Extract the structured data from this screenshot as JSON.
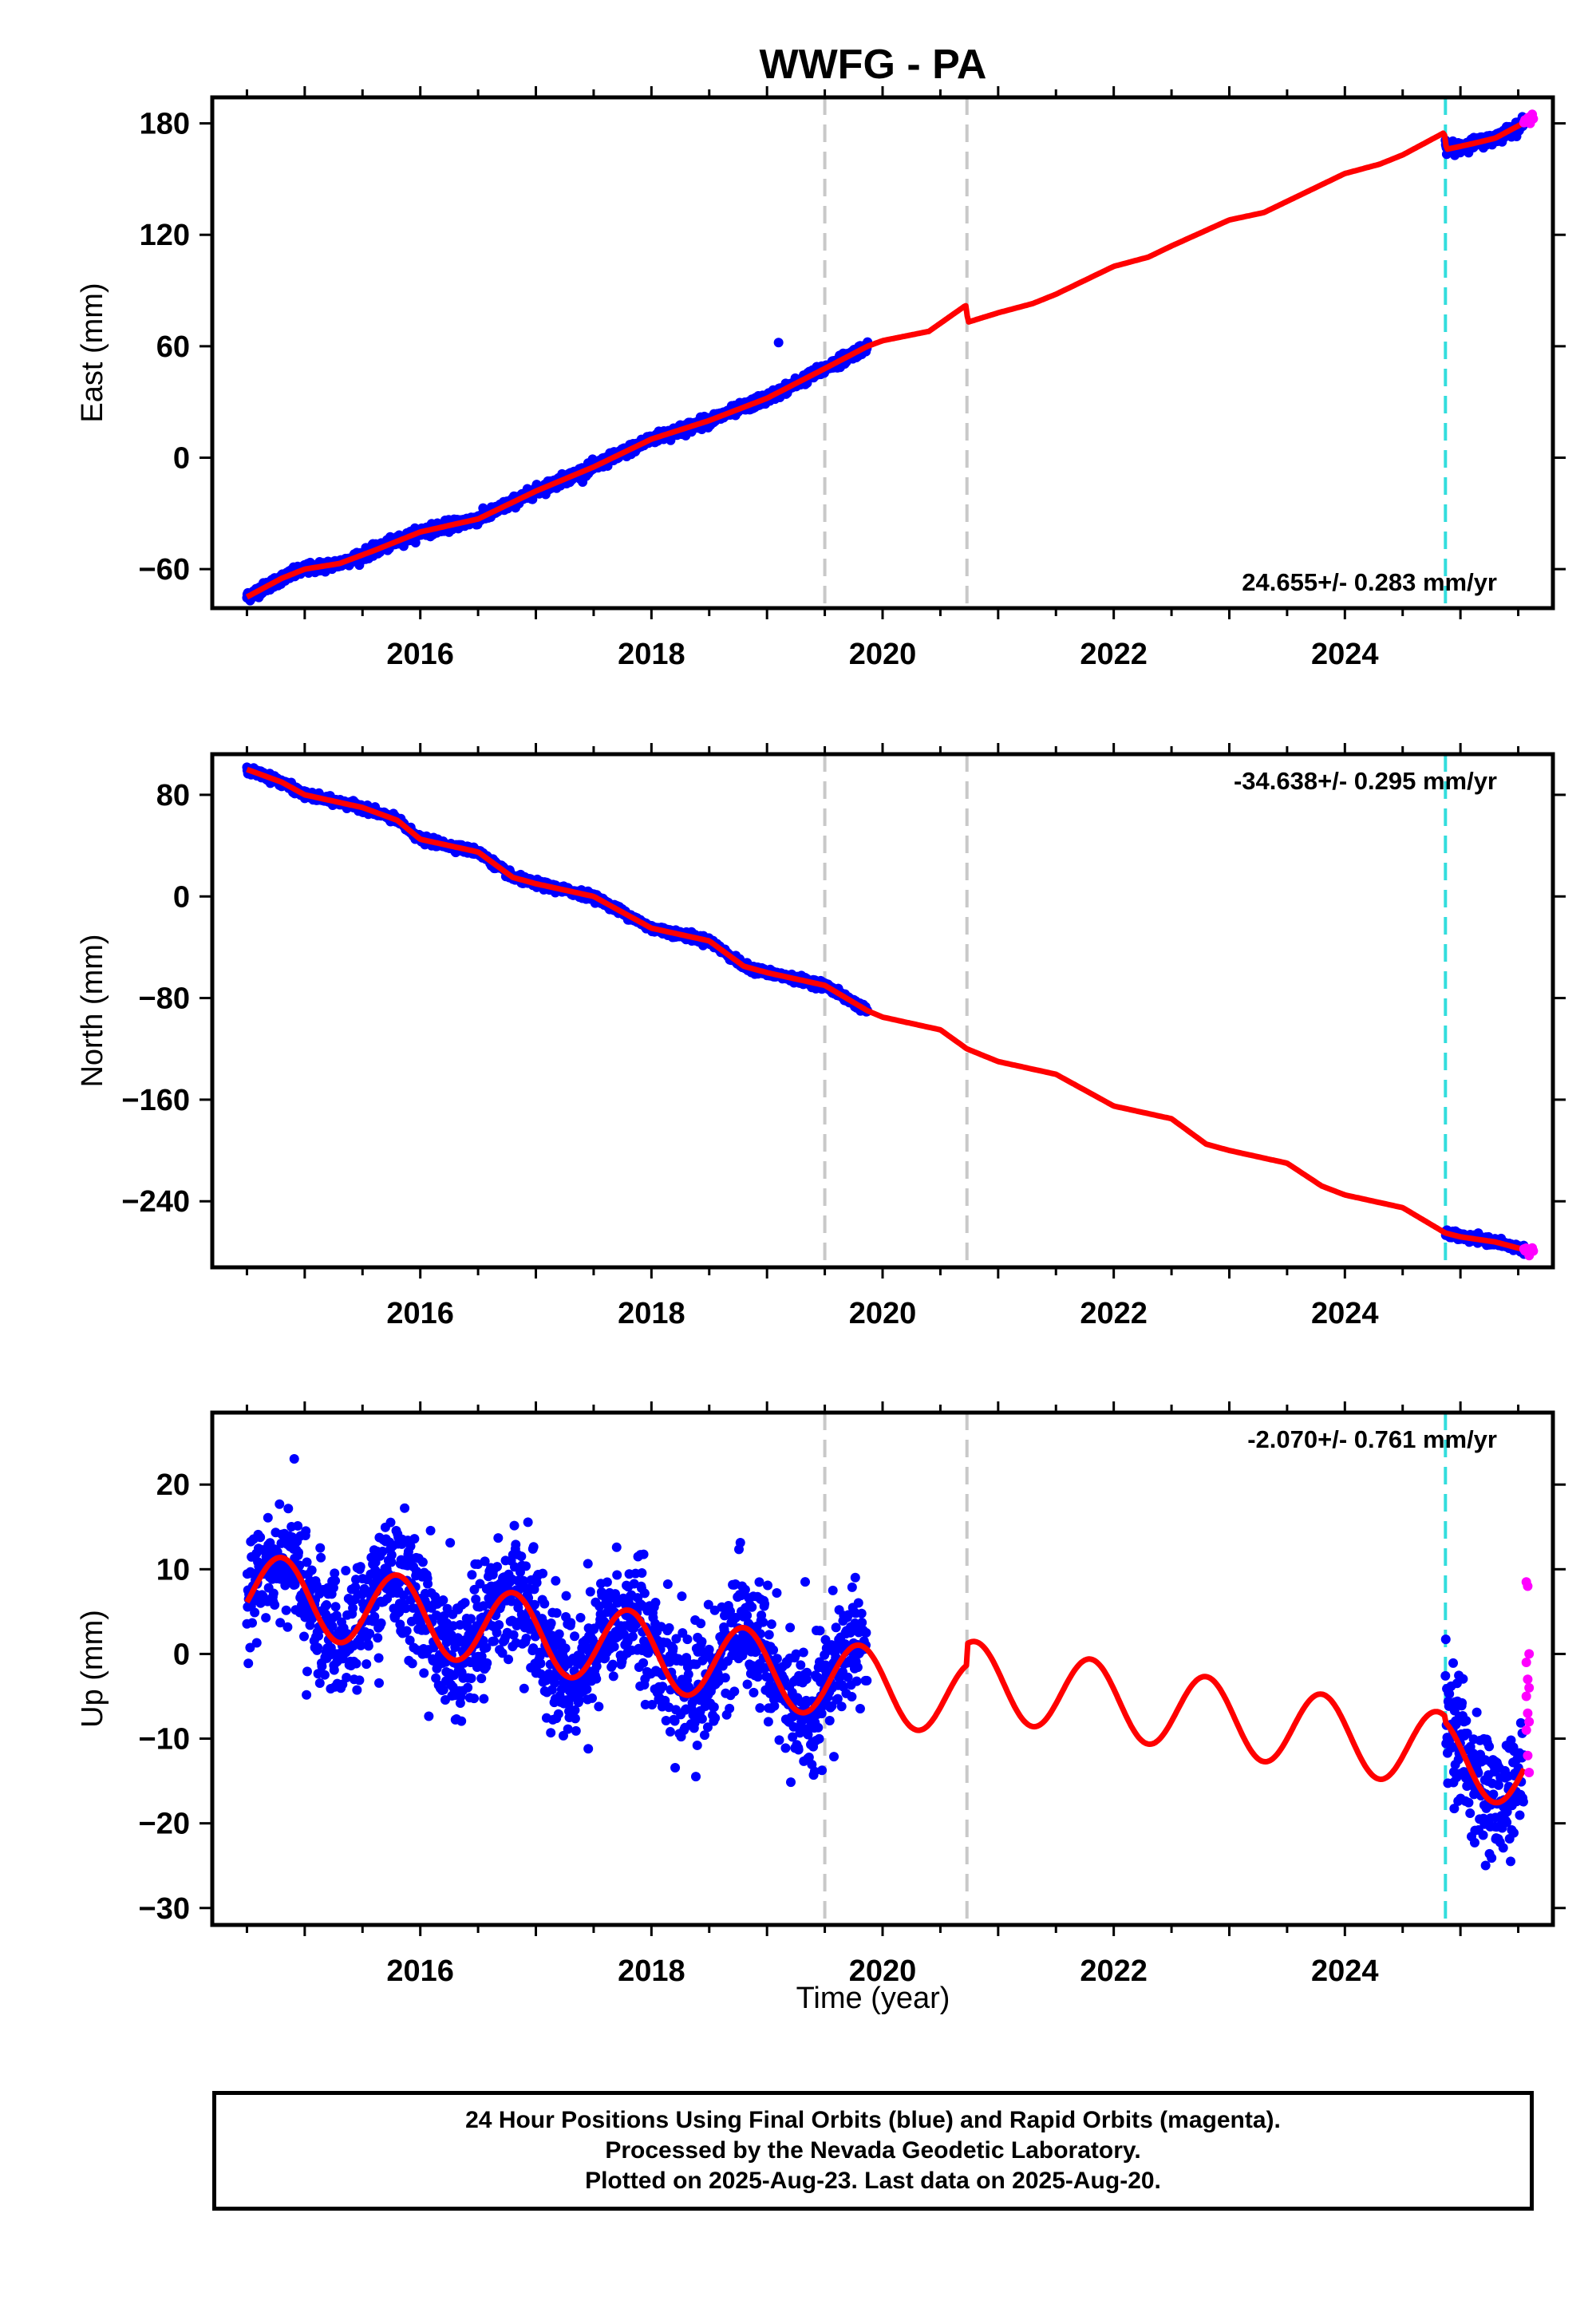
{
  "title": "WWFG - PA",
  "xlabel": "Time (year)",
  "colors": {
    "final_orbits": "#0000ff",
    "rapid_orbits": "#ff00ff",
    "model": "#ff0000",
    "equipment_change": "#c8c8c8",
    "earthquake_offset": "#33dddd"
  },
  "footer": {
    "line1": "24 Hour Positions Using Final Orbits (blue) and Rapid Orbits (magenta).",
    "line2": "Processed by the Nevada Geodetic Laboratory.",
    "line3": "Plotted on 2025-Aug-23. Last data on 2025-Aug-20."
  },
  "chart_data": [
    {
      "type": "scatter",
      "component": "East",
      "ylabel": "East (mm)",
      "rate_label": "24.655+/- 0.283 mm/yr",
      "xlim": [
        2014.2,
        2025.8
      ],
      "ylim": [
        -81,
        194
      ],
      "xticks": [
        2016,
        2018,
        2020,
        2022,
        2024
      ],
      "yticks": [
        -60,
        0,
        60,
        120,
        180
      ],
      "vertical_lines": [
        {
          "x": 2019.5,
          "style": "gray-dashed"
        },
        {
          "x": 2020.73,
          "style": "gray-dashed"
        },
        {
          "x": 2024.87,
          "style": "cyan-dashed"
        }
      ],
      "final_orbits": {
        "x_start": 2014.5,
        "x_end": 2019.87,
        "x_resume": 2024.87,
        "x_stop": 2025.55
      },
      "rapid_orbits": {
        "x_start": 2025.55,
        "x_end": 2025.63
      },
      "model_x": [
        2014.5,
        2014.8,
        2015.0,
        2015.3,
        2015.6,
        2016.0,
        2016.5,
        2017.0,
        2017.5,
        2018.0,
        2018.5,
        2019.0,
        2019.5,
        2019.87,
        2020.0,
        2020.4,
        2020.72,
        2020.74,
        2021.0,
        2021.3,
        2021.5,
        2022.0,
        2022.3,
        2022.5,
        2023.0,
        2023.3,
        2023.5,
        2024.0,
        2024.3,
        2024.5,
        2024.86,
        2024.88,
        2025.1,
        2025.3,
        2025.63
      ],
      "model_y": [
        -75,
        -65,
        -60,
        -57,
        -50,
        -40,
        -33,
        -18,
        -5,
        10,
        20,
        32,
        48,
        60,
        63,
        68,
        82,
        73,
        78,
        83,
        88,
        103,
        108,
        114,
        128,
        132,
        138,
        153,
        158,
        163,
        175,
        166,
        169,
        172,
        183
      ],
      "outlier_points": [
        {
          "x": 2019.1,
          "y": 62
        }
      ]
    },
    {
      "type": "scatter",
      "component": "North",
      "ylabel": "North (mm)",
      "rate_label": "-34.638+/- 0.295 mm/yr",
      "xlim": [
        2014.2,
        2025.8
      ],
      "ylim": [
        -292,
        112
      ],
      "xticks": [
        2016,
        2018,
        2020,
        2022,
        2024
      ],
      "yticks": [
        -240,
        -160,
        -80,
        0,
        80
      ],
      "vertical_lines": [
        {
          "x": 2019.5,
          "style": "gray-dashed"
        },
        {
          "x": 2020.73,
          "style": "gray-dashed"
        },
        {
          "x": 2024.87,
          "style": "cyan-dashed"
        }
      ],
      "final_orbits": {
        "x_start": 2014.5,
        "x_end": 2019.87,
        "x_resume": 2024.87,
        "x_stop": 2025.55
      },
      "rapid_orbits": {
        "x_start": 2025.55,
        "x_end": 2025.63
      },
      "model_x": [
        2014.5,
        2014.8,
        2015.0,
        2015.5,
        2015.8,
        2016.0,
        2016.5,
        2016.8,
        2017.0,
        2017.5,
        2017.8,
        2018.0,
        2018.5,
        2018.8,
        2019.0,
        2019.5,
        2019.87,
        2020.0,
        2020.5,
        2020.73,
        2021.0,
        2021.5,
        2021.8,
        2022.0,
        2022.5,
        2022.8,
        2023.0,
        2023.5,
        2023.8,
        2024.0,
        2024.5,
        2024.87,
        2025.0,
        2025.3,
        2025.63
      ],
      "model_y": [
        100,
        90,
        80,
        70,
        60,
        45,
        35,
        15,
        10,
        0,
        -15,
        -25,
        -35,
        -55,
        -60,
        -70,
        -90,
        -95,
        -105,
        -120,
        -130,
        -140,
        -155,
        -165,
        -175,
        -195,
        -200,
        -210,
        -228,
        -235,
        -245,
        -265,
        -268,
        -272,
        -280
      ]
    },
    {
      "type": "scatter",
      "component": "Up",
      "ylabel": "Up (mm)",
      "rate_label": "-2.070+/- 0.761 mm/yr",
      "xlim": [
        2014.2,
        2025.8
      ],
      "ylim": [
        -32,
        28.5
      ],
      "xticks": [
        2016,
        2018,
        2020,
        2022,
        2024
      ],
      "yticks": [
        -30,
        -20,
        -10,
        0,
        10,
        20
      ],
      "vertical_lines": [
        {
          "x": 2019.5,
          "style": "gray-dashed"
        },
        {
          "x": 2020.73,
          "style": "gray-dashed"
        },
        {
          "x": 2024.87,
          "style": "cyan-dashed"
        }
      ],
      "final_orbits": {
        "x_start": 2014.5,
        "x_end": 2019.87,
        "x_resume": 2024.87,
        "x_stop": 2025.55,
        "scatter_sd": 3.6
      },
      "rapid_orbits": {
        "values": [
          8.5,
          8,
          0,
          -1,
          -3,
          -4,
          -5,
          -7,
          -8,
          -9,
          -12,
          -14
        ]
      },
      "model": {
        "trend_rate": -2.07,
        "trend_at_2014_5": 7.5,
        "annual_amplitude": 4.5,
        "annual_peak_fraction": 0.8,
        "offset_after_2020_73": 2.5,
        "offset_after_2024_87": -0.7
      }
    }
  ]
}
